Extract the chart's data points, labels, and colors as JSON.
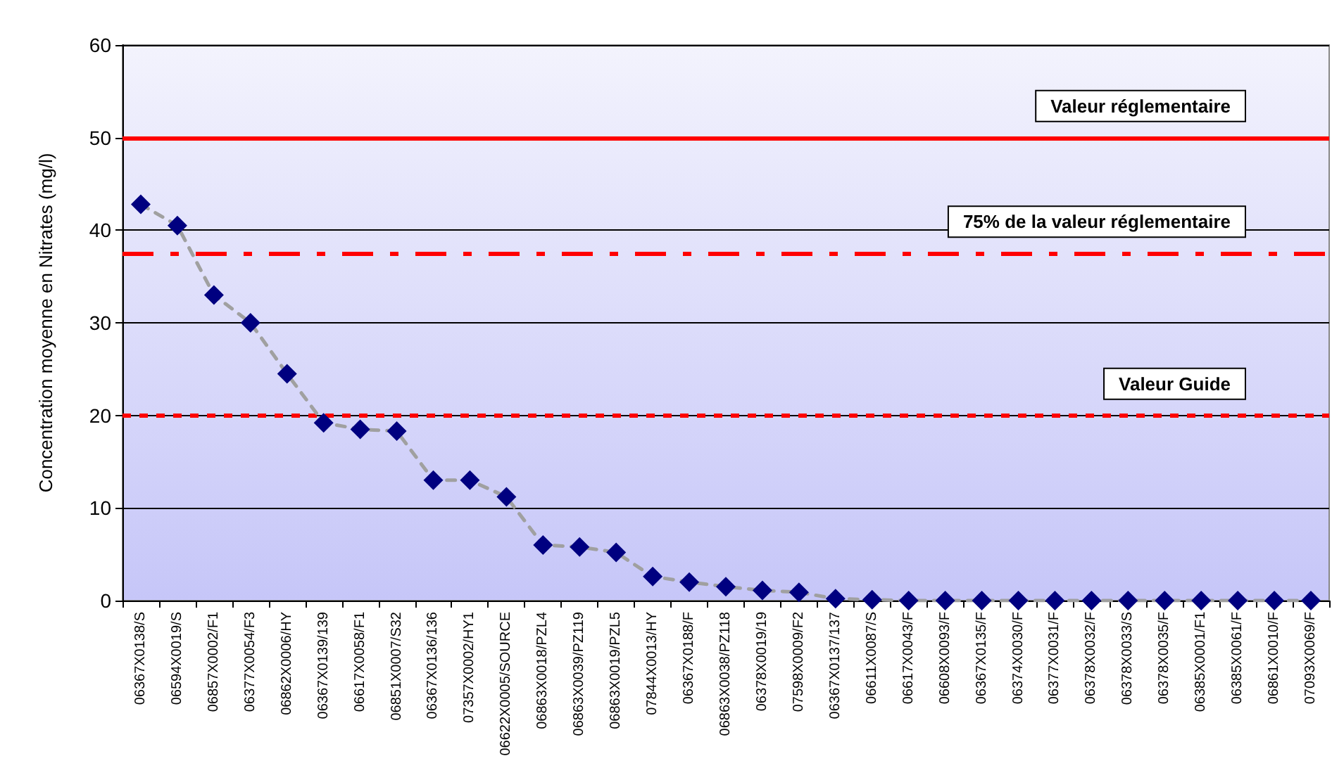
{
  "chart_data": {
    "type": "line",
    "ylabel": "Concentration moyenne en Nitrates (mg/l)",
    "categories": [
      "06367X0138/S",
      "06594X0019/S",
      "06857X0002/F1",
      "06377X0054/F3",
      "06862X0006/HY",
      "06367X0139/139",
      "06617X0058/F1",
      "06851X0007/S32",
      "06367X0136/136",
      "07357X0002/HY1",
      "06622X0005/SOURCE",
      "06863X0018/PZL4",
      "06863X0039/PZ119",
      "06863X0019/PZL5",
      "07844X0013/HY",
      "06367X0188/F",
      "06863X0038/PZ118",
      "06378X0019/19",
      "07598X0009/F2",
      "06367X0137/137",
      "06611X0087/S",
      "06617X0043/F",
      "06608X0093/F",
      "06367X0135/F",
      "06374X0030/F",
      "06377X0031/F",
      "06378X0032/F",
      "06378X0033/S",
      "06378X0035/F",
      "06385X0001/F1",
      "06385X0061/F",
      "06861X0010/F",
      "07093X0069/F"
    ],
    "series": [
      {
        "color": "#000080",
        "values": [
          42.8,
          40.5,
          33,
          30,
          24.5,
          19.2,
          18.5,
          18.3,
          13,
          13,
          11.2,
          6,
          5.8,
          5.2,
          2.6,
          2,
          1.5,
          1.1,
          0.9,
          0.2,
          0.1,
          0,
          0,
          0,
          0,
          0,
          0,
          0,
          0,
          0,
          0,
          0,
          0
        ]
      }
    ],
    "ylim": [
      0,
      60
    ],
    "yticks": [
      0,
      10,
      20,
      30,
      40,
      50,
      60
    ],
    "grid": "y",
    "marker": "diamond",
    "line_style": "dashed",
    "ref_lines": [
      {
        "axis": "y",
        "value": 50,
        "label": "Valeur réglementaire",
        "color": "#ff0000",
        "line_style": "solid"
      },
      {
        "axis": "y",
        "value": 37.5,
        "label": "75% de la valeur réglementaire",
        "color": "#ff0000",
        "line_style": "dashdot"
      },
      {
        "axis": "y",
        "value": 20,
        "label": "Valeur Guide",
        "color": "#ff0000",
        "line_style": "dashed"
      }
    ]
  }
}
